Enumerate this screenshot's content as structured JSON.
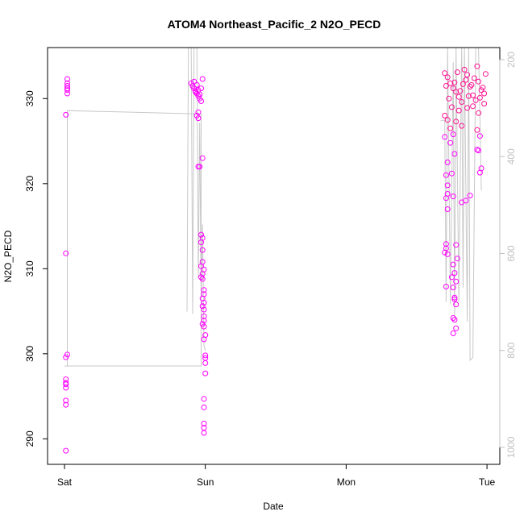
{
  "chart_data": {
    "type": "scatter",
    "title": "ATOM4 Northeast_Pacific_2 N2O_PECD",
    "xlabel": "Date",
    "ylabel": "N2O_PECD",
    "x_ticks": [
      "Sat",
      "Sun",
      "Mon",
      "Tue"
    ],
    "ylim": [
      287,
      336
    ],
    "y_ticks": [
      290,
      300,
      310,
      320,
      330
    ],
    "y2lim": [
      1035,
      175
    ],
    "y2_ticks": [
      200,
      400,
      600,
      800,
      1000
    ],
    "x_unit": "day",
    "grid": false,
    "legend": "none",
    "colors": {
      "points_a": "#ff00ff",
      "points_b": "#ff1493",
      "pressure_line": "#c8c8c8",
      "axis": "#000000",
      "right_axis": "#c0c0c0"
    },
    "series": [
      {
        "role": "N2O_PECD",
        "y_axis": "left",
        "points": [
          [
            0.02,
            332.3
          ],
          [
            0.02,
            331.8
          ],
          [
            0.02,
            331.5
          ],
          [
            0.02,
            331.2
          ],
          [
            0.02,
            331.0
          ],
          [
            0.02,
            330.6
          ],
          [
            0.01,
            328.1
          ],
          [
            0.01,
            311.8
          ],
          [
            0.02,
            299.9
          ],
          [
            0.01,
            299.6
          ],
          [
            0.01,
            297.0
          ],
          [
            0.01,
            296.6
          ],
          [
            0.01,
            296.4
          ],
          [
            0.01,
            296.0
          ],
          [
            0.01,
            294.5
          ],
          [
            0.01,
            294.0
          ],
          [
            0.01,
            288.6
          ],
          [
            0.9,
            331.8
          ],
          [
            0.91,
            331.5
          ],
          [
            0.92,
            331.2
          ],
          [
            0.93,
            330.9
          ],
          [
            0.94,
            330.6
          ],
          [
            0.95,
            330.3
          ],
          [
            0.96,
            330.0
          ],
          [
            0.97,
            329.7
          ],
          [
            0.98,
            332.3
          ],
          [
            0.92,
            332.0
          ],
          [
            0.93,
            330.8
          ],
          [
            0.94,
            331.6
          ],
          [
            0.95,
            331.0
          ],
          [
            0.96,
            330.5
          ],
          [
            0.97,
            331.2
          ],
          [
            0.95,
            328.4
          ],
          [
            0.94,
            328.0
          ],
          [
            0.95,
            327.7
          ],
          [
            0.96,
            322.0
          ],
          [
            0.95,
            322.0
          ],
          [
            0.98,
            323.0
          ],
          [
            0.97,
            314.0
          ],
          [
            0.98,
            313.6
          ],
          [
            0.97,
            313.1
          ],
          [
            0.98,
            312.2
          ],
          [
            0.98,
            310.8
          ],
          [
            0.97,
            310.3
          ],
          [
            0.99,
            309.9
          ],
          [
            0.98,
            309.4
          ],
          [
            0.97,
            309.0
          ],
          [
            0.98,
            308.8
          ],
          [
            0.99,
            307.5
          ],
          [
            0.99,
            307.0
          ],
          [
            0.98,
            306.5
          ],
          [
            0.99,
            306.0
          ],
          [
            0.98,
            305.6
          ],
          [
            0.99,
            305.2
          ],
          [
            0.99,
            304.4
          ],
          [
            0.99,
            303.9
          ],
          [
            0.98,
            303.5
          ],
          [
            0.99,
            303.2
          ],
          [
            1.0,
            302.2
          ],
          [
            0.99,
            301.7
          ],
          [
            1.0,
            299.8
          ],
          [
            1.0,
            299.5
          ],
          [
            1.0,
            298.9
          ],
          [
            1.0,
            297.7
          ],
          [
            0.99,
            294.7
          ],
          [
            0.99,
            293.7
          ],
          [
            0.99,
            291.8
          ],
          [
            0.99,
            291.3
          ],
          [
            0.99,
            290.7
          ],
          [
            2.7,
            333.0
          ],
          [
            2.72,
            332.5
          ],
          [
            2.74,
            331.8
          ],
          [
            2.76,
            331.2
          ],
          [
            2.78,
            330.8
          ],
          [
            2.8,
            330.2
          ],
          [
            2.82,
            329.6
          ],
          [
            2.84,
            333.4
          ],
          [
            2.86,
            332.8
          ],
          [
            2.88,
            331.4
          ],
          [
            2.9,
            330.4
          ],
          [
            2.92,
            329.8
          ],
          [
            2.94,
            332.0
          ],
          [
            2.96,
            331.0
          ],
          [
            2.98,
            330.6
          ],
          [
            2.71,
            331.5
          ],
          [
            2.73,
            330.0
          ],
          [
            2.75,
            329.0
          ],
          [
            2.77,
            331.9
          ],
          [
            2.79,
            333.1
          ],
          [
            2.81,
            330.9
          ],
          [
            2.83,
            331.7
          ],
          [
            2.85,
            332.2
          ],
          [
            2.87,
            330.3
          ],
          [
            2.89,
            331.6
          ],
          [
            2.91,
            332.4
          ],
          [
            2.93,
            333.8
          ],
          [
            2.95,
            330.1
          ],
          [
            2.97,
            331.3
          ],
          [
            2.99,
            332.9
          ],
          [
            2.7,
            328.0
          ],
          [
            2.72,
            327.5
          ],
          [
            2.74,
            326.5
          ],
          [
            2.76,
            325.8
          ],
          [
            2.78,
            327.3
          ],
          [
            2.8,
            328.6
          ],
          [
            2.82,
            326.8
          ],
          [
            2.86,
            328.9
          ],
          [
            2.9,
            329.1
          ],
          [
            2.94,
            328.3
          ],
          [
            2.98,
            329.4
          ],
          [
            2.7,
            325.5
          ],
          [
            2.72,
            322.5
          ],
          [
            2.71,
            321.0
          ],
          [
            2.72,
            319.8
          ],
          [
            2.72,
            318.8
          ],
          [
            2.71,
            318.3
          ],
          [
            2.72,
            317.0
          ],
          [
            2.71,
            312.9
          ],
          [
            2.71,
            312.4
          ],
          [
            2.7,
            311.9
          ],
          [
            2.72,
            311.7
          ],
          [
            2.71,
            307.9
          ],
          [
            2.74,
            324.8
          ],
          [
            2.75,
            321.2
          ],
          [
            2.76,
            318.5
          ],
          [
            2.77,
            323.5
          ],
          [
            2.78,
            312.8
          ],
          [
            2.79,
            311.2
          ],
          [
            2.76,
            310.5
          ],
          [
            2.77,
            309.5
          ],
          [
            2.75,
            309.0
          ],
          [
            2.78,
            308.5
          ],
          [
            2.76,
            307.8
          ],
          [
            2.77,
            306.6
          ],
          [
            2.78,
            305.8
          ],
          [
            2.77,
            306.4
          ],
          [
            2.76,
            304.2
          ],
          [
            2.77,
            304.0
          ],
          [
            2.78,
            303.0
          ],
          [
            2.76,
            302.4
          ],
          [
            2.82,
            317.8
          ],
          [
            2.85,
            318.0
          ],
          [
            2.88,
            318.6
          ],
          [
            2.93,
            326.3
          ],
          [
            2.95,
            325.6
          ],
          [
            2.94,
            323.9
          ],
          [
            2.95,
            321.3
          ],
          [
            2.96,
            321.8
          ],
          [
            2.93,
            324.0
          ]
        ]
      },
      {
        "role": "pressure",
        "y_axis": "right",
        "points": [
          [
            0.0,
            832
          ],
          [
            0.02,
            832
          ],
          [
            0.02,
            305
          ],
          [
            0.02,
            305
          ],
          [
            0.97,
            312
          ],
          [
            0.97,
            312
          ],
          [
            0.97,
            832
          ],
          [
            0.01,
            832
          ],
          [
            0.87,
            720
          ],
          [
            0.88,
            175
          ],
          [
            0.9,
            175
          ],
          [
            0.91,
            725
          ],
          [
            0.92,
            175
          ],
          [
            0.94,
            175
          ],
          [
            0.95,
            650
          ],
          [
            0.96,
            330
          ],
          [
            0.97,
            700
          ],
          [
            0.98,
            540
          ],
          [
            0.99,
            790
          ],
          [
            1.0,
            800
          ],
          [
            2.67,
            325
          ],
          [
            2.7,
            325
          ],
          [
            2.71,
            700
          ],
          [
            2.72,
            175
          ],
          [
            2.74,
            705
          ],
          [
            2.76,
            205
          ],
          [
            2.77,
            730
          ],
          [
            2.78,
            175
          ],
          [
            2.8,
            700
          ],
          [
            2.82,
            175
          ],
          [
            2.83,
            670
          ],
          [
            2.84,
            175
          ],
          [
            2.86,
            740
          ],
          [
            2.87,
            175
          ],
          [
            2.88,
            820
          ],
          [
            2.9,
            815
          ],
          [
            2.92,
            175
          ],
          [
            2.94,
            175
          ],
          [
            2.96,
            470
          ]
        ]
      }
    ]
  }
}
